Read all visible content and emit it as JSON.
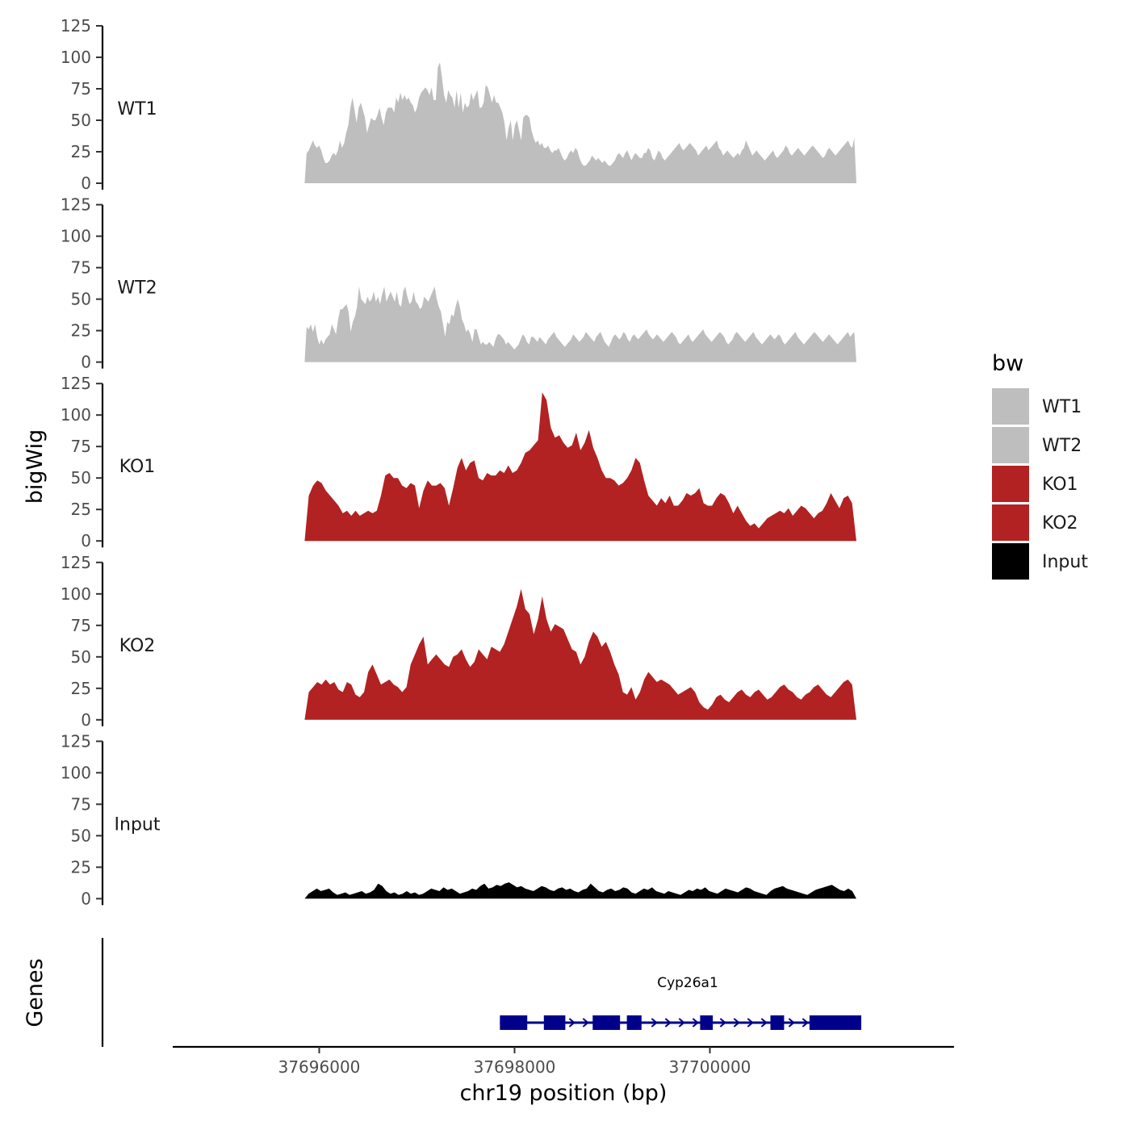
{
  "chart_data": {
    "type": "area",
    "ylabel": "bigWig",
    "xlabel": "chr19 position (bp)",
    "yticks": [
      0,
      25,
      50,
      75,
      100,
      125
    ],
    "ylim": [
      0,
      125
    ],
    "xlim": [
      37694500,
      37702500
    ],
    "xticks": [
      37696000,
      37698000,
      37700000
    ],
    "x_start": 37695850,
    "x_end": 37701500,
    "legend": {
      "title": "bw",
      "placement": "right",
      "entries": [
        {
          "label": "WT1",
          "color": "#bebebe"
        },
        {
          "label": "WT2",
          "color": "#bebebe"
        },
        {
          "label": "KO1",
          "color": "#b22222"
        },
        {
          "label": "KO2",
          "color": "#b22222"
        },
        {
          "label": "Input",
          "color": "#000000"
        }
      ]
    },
    "series": [
      {
        "name": "WT1",
        "color": "#bebebe",
        "values": [
          0,
          24,
          26,
          30,
          34,
          30,
          28,
          30,
          26,
          20,
          16,
          16,
          18,
          22,
          24,
          22,
          26,
          34,
          28,
          32,
          40,
          46,
          60,
          68,
          58,
          48,
          60,
          64,
          58,
          52,
          40,
          46,
          52,
          50,
          50,
          54,
          60,
          52,
          46,
          56,
          60,
          60,
          60,
          56,
          68,
          64,
          72,
          66,
          70,
          66,
          68,
          64,
          62,
          56,
          60,
          68,
          72,
          74,
          76,
          74,
          70,
          76,
          66,
          66,
          92,
          96,
          84,
          70,
          64,
          74,
          70,
          68,
          60,
          74,
          60,
          72,
          56,
          64,
          60,
          62,
          72,
          66,
          70,
          74,
          60,
          60,
          64,
          78,
          76,
          70,
          64,
          70,
          64,
          64,
          60,
          56,
          48,
          34,
          44,
          50,
          34,
          46,
          50,
          42,
          34,
          52,
          54,
          54,
          52,
          42,
          36,
          32,
          34,
          30,
          32,
          28,
          28,
          30,
          26,
          24,
          26,
          26,
          28,
          24,
          20,
          18,
          20,
          24,
          26,
          24,
          28,
          26,
          20,
          16,
          14,
          14,
          16,
          18,
          22,
          20,
          18,
          20,
          18,
          16,
          18,
          16,
          14,
          14,
          16,
          18,
          22,
          24,
          22,
          20,
          24,
          26,
          22,
          18,
          22,
          24,
          22,
          20,
          20,
          24,
          24,
          28,
          26,
          20,
          18,
          22,
          26,
          24,
          20,
          18,
          20,
          22,
          24,
          26,
          28,
          30,
          32,
          28,
          26,
          28,
          30,
          32,
          30,
          28,
          26,
          22,
          24,
          26,
          28,
          30,
          26,
          28,
          30,
          32,
          34,
          28,
          26,
          22,
          24,
          26,
          24,
          22,
          20,
          22,
          24,
          22,
          26,
          28,
          34,
          30,
          26,
          22,
          24,
          26,
          24,
          22,
          20,
          18,
          20,
          22,
          24,
          26,
          22,
          20,
          22,
          24,
          26,
          30,
          28,
          24,
          22,
          24,
          26,
          28,
          26,
          24,
          22,
          24,
          26,
          28,
          30,
          28,
          26,
          24,
          22,
          20,
          22,
          26,
          28,
          26,
          24,
          22,
          24,
          26,
          28,
          30,
          32,
          34,
          30,
          28,
          36,
          0
        ]
      },
      {
        "name": "WT2",
        "color": "#bebebe",
        "values": [
          0,
          28,
          26,
          30,
          24,
          30,
          20,
          14,
          18,
          14,
          18,
          20,
          22,
          30,
          26,
          22,
          34,
          42,
          42,
          44,
          46,
          40,
          24,
          32,
          36,
          44,
          60,
          50,
          48,
          46,
          52,
          48,
          50,
          56,
          48,
          52,
          46,
          54,
          60,
          48,
          52,
          56,
          52,
          48,
          56,
          46,
          44,
          56,
          60,
          52,
          46,
          48,
          56,
          48,
          46,
          42,
          44,
          52,
          50,
          48,
          52,
          56,
          60,
          50,
          44,
          40,
          30,
          20,
          32,
          30,
          38,
          36,
          44,
          50,
          44,
          34,
          30,
          24,
          26,
          22,
          16,
          26,
          26,
          20,
          14,
          16,
          14,
          14,
          16,
          14,
          12,
          18,
          22,
          22,
          20,
          18,
          14,
          16,
          14,
          12,
          10,
          12,
          14,
          18,
          22,
          20,
          16,
          14,
          20,
          20,
          18,
          16,
          20,
          18,
          16,
          14,
          18,
          20,
          22,
          24,
          20,
          18,
          16,
          14,
          12,
          14,
          16,
          18,
          22,
          20,
          18,
          16,
          18,
          20,
          24,
          22,
          20,
          18,
          16,
          20,
          22,
          24,
          20,
          16,
          14,
          12,
          16,
          20,
          22,
          20,
          18,
          20,
          24,
          22,
          18,
          16,
          20,
          22,
          20,
          18,
          20,
          22,
          24,
          26,
          22,
          20,
          18,
          20,
          22,
          20,
          18,
          16,
          18,
          20,
          22,
          24,
          22,
          20,
          16,
          14,
          16,
          18,
          20,
          22,
          18,
          16,
          18,
          20,
          22,
          24,
          26,
          22,
          20,
          18,
          16,
          18,
          20,
          22,
          24,
          22,
          20,
          16,
          14,
          16,
          18,
          22,
          24,
          22,
          20,
          18,
          16,
          18,
          20,
          22,
          24,
          20,
          18,
          16,
          14,
          16,
          18,
          20,
          22,
          20,
          18,
          20,
          22,
          20,
          16,
          14,
          16,
          18,
          20,
          22,
          24,
          20,
          18,
          16,
          14,
          16,
          18,
          20,
          22,
          24,
          22,
          20,
          18,
          16,
          18,
          20,
          22,
          20,
          18,
          16,
          14,
          16,
          18,
          20,
          22,
          24,
          20,
          22,
          24,
          0
        ]
      },
      {
        "name": "KO1",
        "color": "#b22222",
        "values": [
          0,
          36,
          44,
          48,
          46,
          40,
          36,
          32,
          28,
          22,
          24,
          20,
          24,
          20,
          22,
          24,
          22,
          24,
          36,
          52,
          54,
          50,
          50,
          44,
          42,
          46,
          44,
          26,
          40,
          48,
          44,
          44,
          46,
          42,
          28,
          42,
          58,
          66,
          56,
          62,
          64,
          50,
          48,
          54,
          52,
          52,
          56,
          54,
          60,
          54,
          56,
          62,
          70,
          72,
          76,
          80,
          118,
          112,
          90,
          82,
          84,
          78,
          74,
          76,
          86,
          72,
          78,
          88,
          74,
          66,
          56,
          50,
          50,
          48,
          44,
          46,
          50,
          56,
          66,
          62,
          48,
          36,
          32,
          28,
          34,
          30,
          36,
          28,
          28,
          32,
          38,
          36,
          38,
          42,
          30,
          28,
          28,
          34,
          38,
          36,
          30,
          22,
          28,
          22,
          16,
          12,
          14,
          10,
          14,
          18,
          20,
          22,
          24,
          22,
          26,
          20,
          24,
          28,
          26,
          22,
          18,
          22,
          24,
          30,
          38,
          32,
          26,
          34,
          36,
          30,
          0
        ]
      },
      {
        "name": "KO2",
        "color": "#b22222",
        "values": [
          0,
          22,
          26,
          30,
          28,
          32,
          28,
          30,
          24,
          22,
          30,
          28,
          20,
          18,
          22,
          38,
          44,
          36,
          28,
          30,
          32,
          28,
          26,
          22,
          26,
          44,
          52,
          60,
          66,
          44,
          48,
          52,
          48,
          44,
          42,
          50,
          52,
          56,
          48,
          42,
          46,
          56,
          52,
          48,
          58,
          56,
          54,
          60,
          70,
          80,
          90,
          104,
          88,
          84,
          68,
          80,
          98,
          80,
          70,
          76,
          74,
          72,
          64,
          56,
          54,
          44,
          50,
          62,
          70,
          66,
          58,
          62,
          54,
          44,
          36,
          22,
          20,
          26,
          16,
          22,
          32,
          38,
          34,
          30,
          32,
          30,
          28,
          24,
          20,
          22,
          24,
          26,
          22,
          14,
          10,
          8,
          12,
          18,
          20,
          16,
          14,
          18,
          22,
          24,
          20,
          18,
          22,
          24,
          20,
          16,
          18,
          22,
          26,
          28,
          24,
          22,
          18,
          16,
          20,
          22,
          26,
          28,
          24,
          20,
          18,
          22,
          26,
          30,
          32,
          28,
          0
        ]
      },
      {
        "name": "Input",
        "color": "#000000",
        "values": [
          0,
          4,
          6,
          8,
          6,
          7,
          8,
          5,
          3,
          4,
          5,
          3,
          4,
          5,
          6,
          4,
          5,
          7,
          12,
          10,
          6,
          4,
          5,
          3,
          4,
          6,
          4,
          5,
          3,
          4,
          6,
          8,
          7,
          6,
          9,
          7,
          8,
          6,
          4,
          5,
          6,
          8,
          7,
          10,
          12,
          8,
          9,
          11,
          10,
          12,
          13,
          11,
          9,
          10,
          8,
          7,
          6,
          8,
          10,
          9,
          7,
          6,
          8,
          9,
          7,
          8,
          6,
          5,
          7,
          8,
          12,
          9,
          6,
          5,
          7,
          8,
          6,
          7,
          9,
          8,
          5,
          4,
          6,
          8,
          7,
          9,
          6,
          5,
          4,
          6,
          5,
          4,
          3,
          5,
          7,
          6,
          8,
          7,
          9,
          6,
          5,
          4,
          6,
          8,
          7,
          6,
          5,
          7,
          9,
          8,
          6,
          5,
          4,
          3,
          6,
          8,
          9,
          10,
          8,
          7,
          6,
          5,
          4,
          3,
          5,
          7,
          8,
          9,
          10,
          11,
          9,
          7,
          6,
          8,
          6,
          0
        ]
      }
    ],
    "gene_track": {
      "ylabel": "Genes",
      "gene_name": "Cyp26a1",
      "strand": "+",
      "start": 37697850,
      "end": 37701550,
      "exons": [
        [
          37697850,
          37698130
        ],
        [
          37698300,
          37698520
        ],
        [
          37698800,
          37699080
        ],
        [
          37699150,
          37699300
        ],
        [
          37699900,
          37700030
        ],
        [
          37700620,
          37700760
        ],
        [
          37701020,
          37701550
        ]
      ]
    }
  }
}
